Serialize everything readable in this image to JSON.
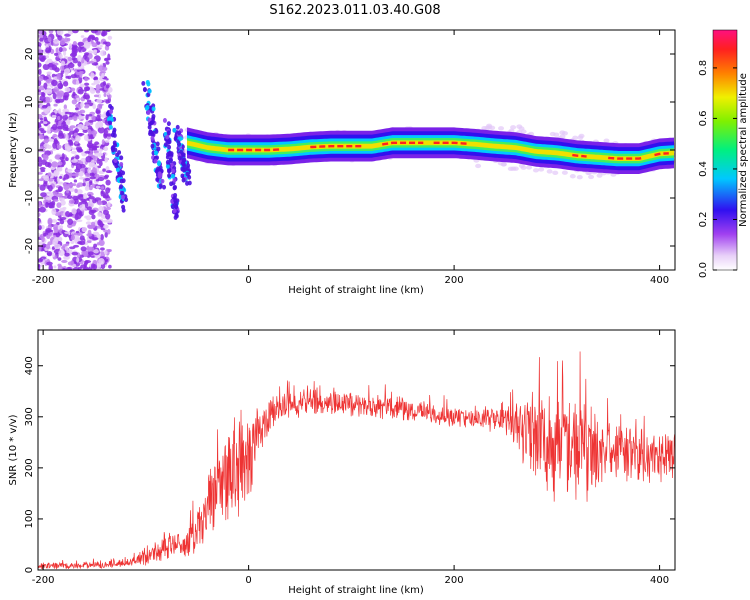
{
  "title": "S162.2023.011.03.40.G08",
  "chart_data": [
    {
      "type": "heatmap",
      "xlabel": "Height of straight line (km)",
      "ylabel": "Frequency (Hz)",
      "xlim": [
        -205,
        415
      ],
      "ylim": [
        -25,
        25
      ],
      "xticks": [
        -200,
        0,
        200,
        400
      ],
      "yticks": [
        -20,
        -10,
        0,
        10,
        20
      ],
      "ridge": {
        "x": [
          -60,
          -40,
          -20,
          0,
          20,
          40,
          60,
          80,
          100,
          120,
          140,
          160,
          180,
          200,
          220,
          240,
          260,
          280,
          300,
          320,
          340,
          360,
          380,
          400,
          415
        ],
        "freq": [
          1.5,
          0.5,
          0.0,
          0.0,
          0.0,
          0.2,
          0.6,
          0.8,
          0.8,
          0.8,
          1.5,
          1.5,
          1.5,
          1.5,
          1.2,
          0.8,
          0.5,
          -0.3,
          -0.6,
          -1.2,
          -1.5,
          -1.8,
          -1.8,
          -0.8,
          -0.6
        ]
      },
      "colorbar": {
        "label": "Normalized spectral amplitude",
        "range": [
          0,
          0.95
        ],
        "ticks": [
          "0.0",
          "0.2",
          "0.4",
          "0.6",
          "0.8"
        ]
      }
    },
    {
      "type": "line",
      "xlabel": "Height of straight line (km)",
      "ylabel": "SNR (10 * v/v)",
      "xlim": [
        -205,
        415
      ],
      "ylim": [
        0,
        470
      ],
      "xticks": [
        -200,
        0,
        200,
        400
      ],
      "yticks": [
        0,
        100,
        200,
        300,
        400
      ],
      "color": "#ee3333",
      "series": [
        {
          "x": [
            -205,
            -180,
            -160,
            -140,
            -120,
            -110,
            -100,
            -80,
            -60,
            -45,
            -35,
            -25,
            -15,
            -5,
            0,
            10,
            20,
            30,
            60,
            100,
            150,
            200,
            250,
            270,
            290,
            310,
            330,
            350,
            380,
            415
          ],
          "center": [
            8,
            8,
            9,
            10,
            14,
            18,
            28,
            45,
            55,
            85,
            150,
            180,
            200,
            210,
            230,
            270,
            300,
            320,
            330,
            325,
            315,
            300,
            295,
            280,
            250,
            240,
            235,
            230,
            225,
            225
          ],
          "amplitude": [
            6,
            6,
            6,
            7,
            8,
            10,
            20,
            25,
            30,
            50,
            75,
            90,
            100,
            100,
            85,
            50,
            35,
            25,
            25,
            25,
            22,
            20,
            25,
            70,
            100,
            110,
            90,
            60,
            50,
            45
          ]
        }
      ]
    }
  ]
}
